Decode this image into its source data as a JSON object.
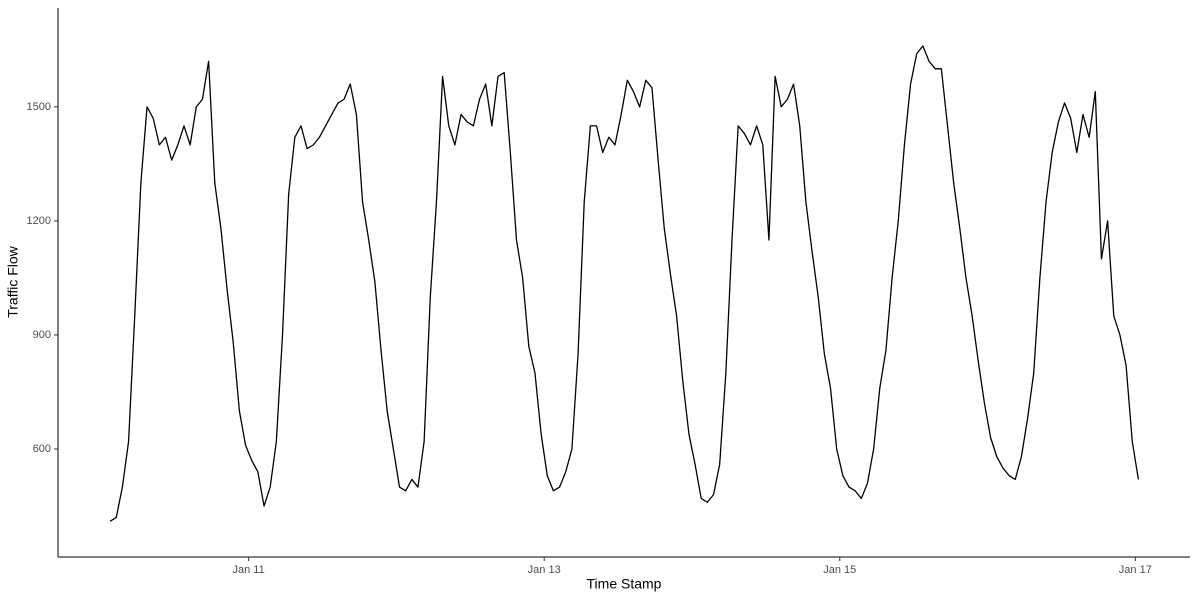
{
  "chart_data": {
    "type": "line",
    "x_label": "Time Stamp",
    "y_label": "Traffic Flow",
    "xlim": [
      9.71,
      17.37
    ],
    "ylim": [
      316,
      1760
    ],
    "xticks": [
      {
        "value": 11,
        "label": "Jan 11"
      },
      {
        "value": 13,
        "label": "Jan 13"
      },
      {
        "value": 15,
        "label": "Jan 15"
      },
      {
        "value": 17,
        "label": "Jan 17"
      }
    ],
    "yticks": [
      600,
      900,
      1200,
      1500
    ],
    "grid": false,
    "series": [
      {
        "color": "#000000",
        "x": [
          10.0625,
          10.1042,
          10.1458,
          10.1875,
          10.2292,
          10.2708,
          10.3125,
          10.3542,
          10.3958,
          10.4375,
          10.4792,
          10.5208,
          10.5625,
          10.6042,
          10.6458,
          10.6875,
          10.7292,
          10.7708,
          10.8125,
          10.8542,
          10.8958,
          10.9375,
          10.9792,
          11.0208,
          11.0625,
          11.1042,
          11.1458,
          11.1875,
          11.2292,
          11.2708,
          11.3125,
          11.3542,
          11.3958,
          11.4375,
          11.4792,
          11.5208,
          11.5625,
          11.6042,
          11.6458,
          11.6875,
          11.7292,
          11.7708,
          11.8125,
          11.8542,
          11.8958,
          11.9375,
          11.9792,
          12.0208,
          12.0625,
          12.1042,
          12.1458,
          12.1875,
          12.2292,
          12.2708,
          12.3125,
          12.3542,
          12.3958,
          12.4375,
          12.4792,
          12.5208,
          12.5625,
          12.6042,
          12.6458,
          12.6875,
          12.7292,
          12.7708,
          12.8125,
          12.8542,
          12.8958,
          12.9375,
          12.9792,
          13.0208,
          13.0625,
          13.1042,
          13.1458,
          13.1875,
          13.2292,
          13.2708,
          13.3125,
          13.3542,
          13.3958,
          13.4375,
          13.4792,
          13.5208,
          13.5625,
          13.6042,
          13.6458,
          13.6875,
          13.7292,
          13.7708,
          13.8125,
          13.8542,
          13.8958,
          13.9375,
          13.9792,
          14.0208,
          14.0625,
          14.1042,
          14.1458,
          14.1875,
          14.2292,
          14.2708,
          14.3125,
          14.3542,
          14.3958,
          14.4375,
          14.4792,
          14.5208,
          14.5625,
          14.6042,
          14.6458,
          14.6875,
          14.7292,
          14.7708,
          14.8125,
          14.8542,
          14.8958,
          14.9375,
          14.9792,
          15.0208,
          15.0625,
          15.1042,
          15.1458,
          15.1875,
          15.2292,
          15.2708,
          15.3125,
          15.3542,
          15.3958,
          15.4375,
          15.4792,
          15.5208,
          15.5625,
          15.6042,
          15.6458,
          15.6875,
          15.7292,
          15.7708,
          15.8125,
          15.8542,
          15.8958,
          15.9375,
          15.9792,
          16.0208,
          16.0625,
          16.1042,
          16.1458,
          16.1875,
          16.2292,
          16.2708,
          16.3125,
          16.3542,
          16.3958,
          16.4375,
          16.4792,
          16.5208,
          16.5625,
          16.6042,
          16.6458,
          16.6875,
          16.7292,
          16.7708,
          16.8125,
          16.8542,
          16.8958,
          16.9375,
          16.9792,
          17.0208
        ],
        "values": [
          410,
          420,
          500,
          620,
          950,
          1300,
          1500,
          1470,
          1400,
          1420,
          1360,
          1400,
          1450,
          1400,
          1500,
          1520,
          1620,
          1300,
          1180,
          1020,
          880,
          700,
          610,
          570,
          540,
          450,
          500,
          620,
          900,
          1270,
          1420,
          1450,
          1390,
          1400,
          1420,
          1450,
          1480,
          1510,
          1520,
          1560,
          1480,
          1250,
          1150,
          1040,
          860,
          700,
          600,
          500,
          490,
          520,
          500,
          620,
          1000,
          1250,
          1580,
          1450,
          1400,
          1480,
          1460,
          1450,
          1520,
          1560,
          1450,
          1580,
          1590,
          1380,
          1150,
          1050,
          870,
          800,
          640,
          530,
          490,
          500,
          540,
          600,
          850,
          1250,
          1450,
          1450,
          1380,
          1420,
          1400,
          1480,
          1570,
          1540,
          1500,
          1570,
          1550,
          1360,
          1180,
          1060,
          950,
          780,
          640,
          560,
          470,
          460,
          480,
          560,
          800,
          1150,
          1450,
          1430,
          1400,
          1450,
          1400,
          1150,
          1580,
          1500,
          1520,
          1560,
          1450,
          1250,
          1120,
          1000,
          850,
          760,
          600,
          530,
          500,
          490,
          470,
          510,
          600,
          760,
          860,
          1050,
          1200,
          1400,
          1560,
          1640,
          1660,
          1620,
          1600,
          1600,
          1450,
          1300,
          1180,
          1050,
          950,
          830,
          720,
          630,
          580,
          550,
          530,
          520,
          580,
          680,
          800,
          1050,
          1250,
          1380,
          1460,
          1510,
          1470,
          1380,
          1480,
          1420,
          1540,
          1100,
          1200,
          950,
          900,
          820,
          620,
          520
        ]
      }
    ]
  }
}
